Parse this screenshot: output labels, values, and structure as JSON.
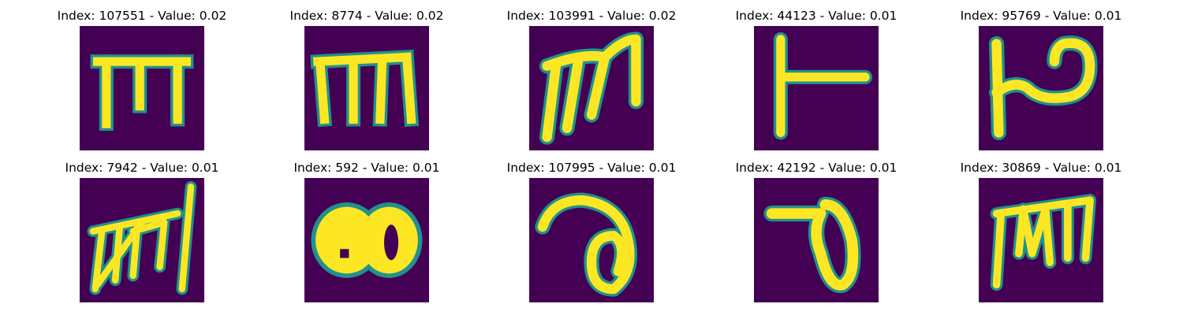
{
  "background_color": "#440154",
  "stroke_color": "#fde725",
  "edge_color": "#21918c",
  "cells": [
    {
      "title": "Index: 107551 - Value: 0.02",
      "glyph": "m-shape"
    },
    {
      "title": "Index: 8774 - Value: 0.02",
      "glyph": "m-shape"
    },
    {
      "title": "Index: 103991 - Value: 0.02",
      "glyph": "m-shape"
    },
    {
      "title": "Index: 44123 - Value: 0.01",
      "glyph": "t-shape"
    },
    {
      "title": "Index: 95769 - Value: 0.01",
      "glyph": "p-shape"
    },
    {
      "title": "Index: 7942 - Value: 0.01",
      "glyph": "scribble"
    },
    {
      "title": "Index: 592 - Value: 0.01",
      "glyph": "blob"
    },
    {
      "title": "Index: 107995 - Value: 0.01",
      "glyph": "loop"
    },
    {
      "title": "Index: 42192 - Value: 0.01",
      "glyph": "loop"
    },
    {
      "title": "Index: 30869 - Value: 0.01",
      "glyph": "m-shape"
    }
  ]
}
